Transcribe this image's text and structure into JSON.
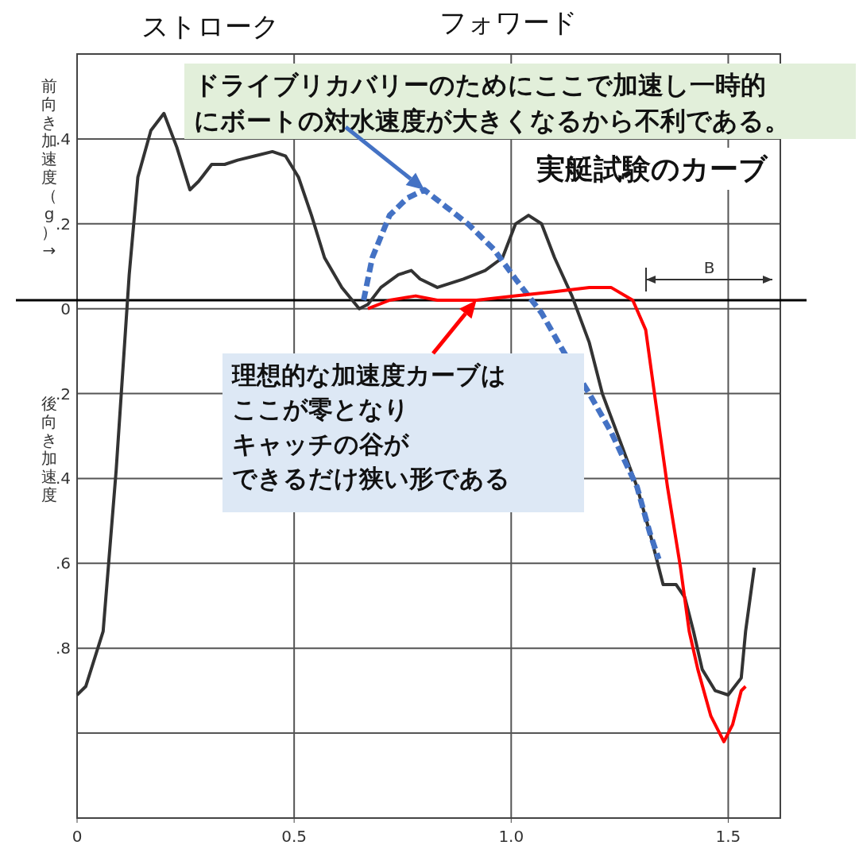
{
  "chart_data": {
    "type": "line",
    "ylabel": "前向き加速度（g）→",
    "xlim": [
      0,
      1.62
    ],
    "ylim": [
      -1.2,
      0.6
    ],
    "xticks": [
      0,
      0.5,
      {
        "value": 1.0,
        "label": "1.0"
      },
      1.5
    ],
    "yticks": [
      {
        "value": 0.4,
        "label": ".4"
      },
      {
        "value": 0.2,
        "label": ".2"
      },
      0,
      {
        "value": -0.2,
        "label": ".2"
      },
      {
        "value": -0.4,
        "label": ".4"
      },
      {
        "value": -0.6,
        "label": ".6"
      },
      {
        "value": -0.8,
        "label": ".8"
      },
      {
        "value": -1.0,
        "label": null
      }
    ],
    "grid": true,
    "marker": "none",
    "series": [
      {
        "color": "#333333",
        "line_style": "solid",
        "x": [
          0,
          0.02,
          0.06,
          0.09,
          0.12,
          0.14,
          0.17,
          0.2,
          0.23,
          0.26,
          0.28,
          0.31,
          0.34,
          0.37,
          0.41,
          0.45,
          0.48,
          0.51,
          0.54,
          0.57,
          0.61,
          0.65,
          0.67,
          0.7,
          0.74,
          0.77,
          0.79,
          0.83,
          0.89,
          0.94,
          0.98,
          1.01,
          1.04,
          1.07,
          1.1,
          1.14,
          1.18,
          1.21,
          1.25,
          1.29,
          1.32,
          1.35,
          1.38,
          1.4,
          1.42,
          1.44,
          1.47,
          1.5,
          1.53,
          1.54,
          1.56
        ],
        "values": [
          -0.91,
          -0.89,
          -0.76,
          -0.38,
          0.08,
          0.31,
          0.42,
          0.46,
          0.38,
          0.28,
          0.3,
          0.34,
          0.34,
          0.35,
          0.36,
          0.37,
          0.36,
          0.31,
          0.22,
          0.12,
          0.05,
          0.0,
          0.01,
          0.05,
          0.08,
          0.09,
          0.07,
          0.05,
          0.07,
          0.09,
          0.12,
          0.2,
          0.22,
          0.2,
          0.12,
          0.03,
          -0.08,
          -0.2,
          -0.31,
          -0.42,
          -0.53,
          -0.65,
          -0.65,
          -0.68,
          -0.76,
          -0.85,
          -0.9,
          -0.91,
          -0.87,
          -0.76,
          -0.61
        ]
      },
      {
        "color": "#4472c4",
        "line_style": "dashed",
        "x": [
          0.66,
          0.68,
          0.72,
          0.76,
          0.8,
          0.85,
          0.9,
          0.96,
          1.01,
          1.07,
          1.12,
          1.18,
          1.23,
          1.29,
          1.32,
          1.34
        ],
        "values": [
          0.02,
          0.12,
          0.22,
          0.26,
          0.28,
          0.24,
          0.2,
          0.14,
          0.07,
          -0.01,
          -0.1,
          -0.2,
          -0.29,
          -0.42,
          -0.53,
          -0.59
        ]
      },
      {
        "color": "#ff0000",
        "line_style": "solid",
        "x": [
          0.67,
          0.72,
          0.78,
          0.83,
          0.92,
          1.01,
          1.1,
          1.18,
          1.23,
          1.28,
          1.31,
          1.33,
          1.36,
          1.39,
          1.41,
          1.43,
          1.46,
          1.49,
          1.51,
          1.53,
          1.54
        ],
        "values": [
          0.0,
          0.02,
          0.03,
          0.02,
          0.02,
          0.03,
          0.04,
          0.05,
          0.05,
          0.02,
          -0.05,
          -0.2,
          -0.42,
          -0.61,
          -0.76,
          -0.85,
          -0.96,
          -1.02,
          -0.98,
          -0.9,
          -0.89
        ]
      }
    ],
    "ref_lines": [
      {
        "axis": "y",
        "value": 0.02,
        "color": "#000000"
      }
    ],
    "annotations": [
      "ストローク",
      "フォワード",
      {
        "text": "ドライブリカバリーのためにここで加速し一時的にボートの対水速度が大きくなるから不利である。",
        "x": 0.8,
        "y": 0.28
      },
      "実艇試験のカーブ",
      {
        "text": "理想的な加速度カーブはここが零となりキャッチの谷ができるだけ狭い形である",
        "x": 0.92,
        "y": 0.02
      },
      "後向き加速度",
      "B"
    ]
  }
}
